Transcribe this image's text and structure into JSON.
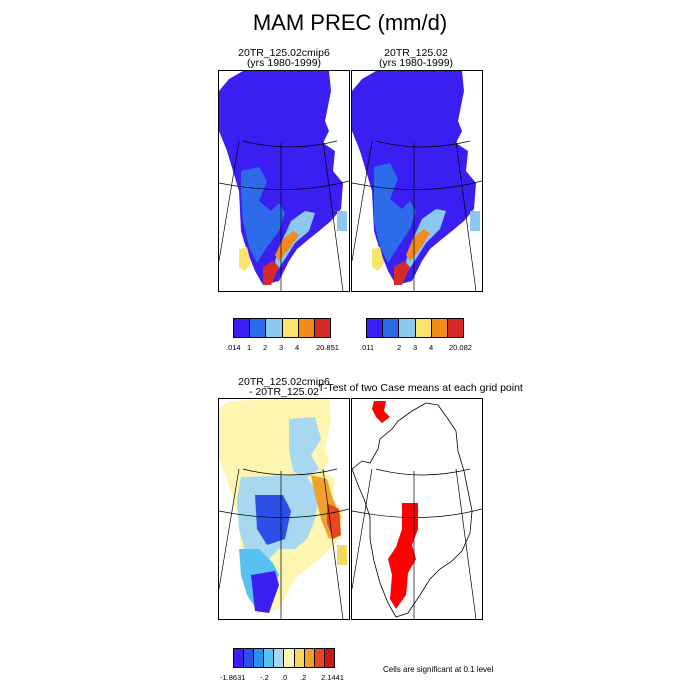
{
  "title": "MAM PREC (mm/d)",
  "panels": {
    "p1": {
      "line1": "20TR_125.02cmip6",
      "line2": "(yrs 1980-1999)"
    },
    "p2": {
      "line1": "20TR_125.02",
      "line2": "(yrs 1980-1999)"
    },
    "p3": {
      "line1": "20TR_125.02cmip6",
      "line2": "- 20TR_125.02"
    },
    "p4": {
      "line1": "T-Test of two Case means at each grid point"
    }
  },
  "colorbars": {
    "cb1": {
      "colors": [
        "#3a1ef2",
        "#2c6bea",
        "#8cc8f0",
        "#f8e36c",
        "#f28a1c",
        "#d62a28"
      ],
      "labels": [
        ".014",
        "1",
        "2",
        "3",
        "4",
        "20.851"
      ]
    },
    "cb2": {
      "colors": [
        "#3a1ef2",
        "#2c6bea",
        "#8cc8f0",
        "#f8e36c",
        "#f28a1c",
        "#d62a28"
      ],
      "labels": [
        ".011",
        "2",
        "3",
        "4",
        "20.082"
      ]
    },
    "cb3": {
      "colors": [
        "#3a1ef2",
        "#2c4fe8",
        "#2f8ff0",
        "#59c0f2",
        "#a8d8f0",
        "#fdf5b0",
        "#f8d85c",
        "#f2a02c",
        "#e8461c",
        "#c81818"
      ],
      "labels": [
        "-1.8631",
        "-.2",
        ".0",
        ".2",
        "2.1441"
      ]
    }
  },
  "significance_note": "Cells are significant at 0.1 level",
  "colors": {
    "significant": "#ff0000",
    "land_line": "#000000"
  }
}
